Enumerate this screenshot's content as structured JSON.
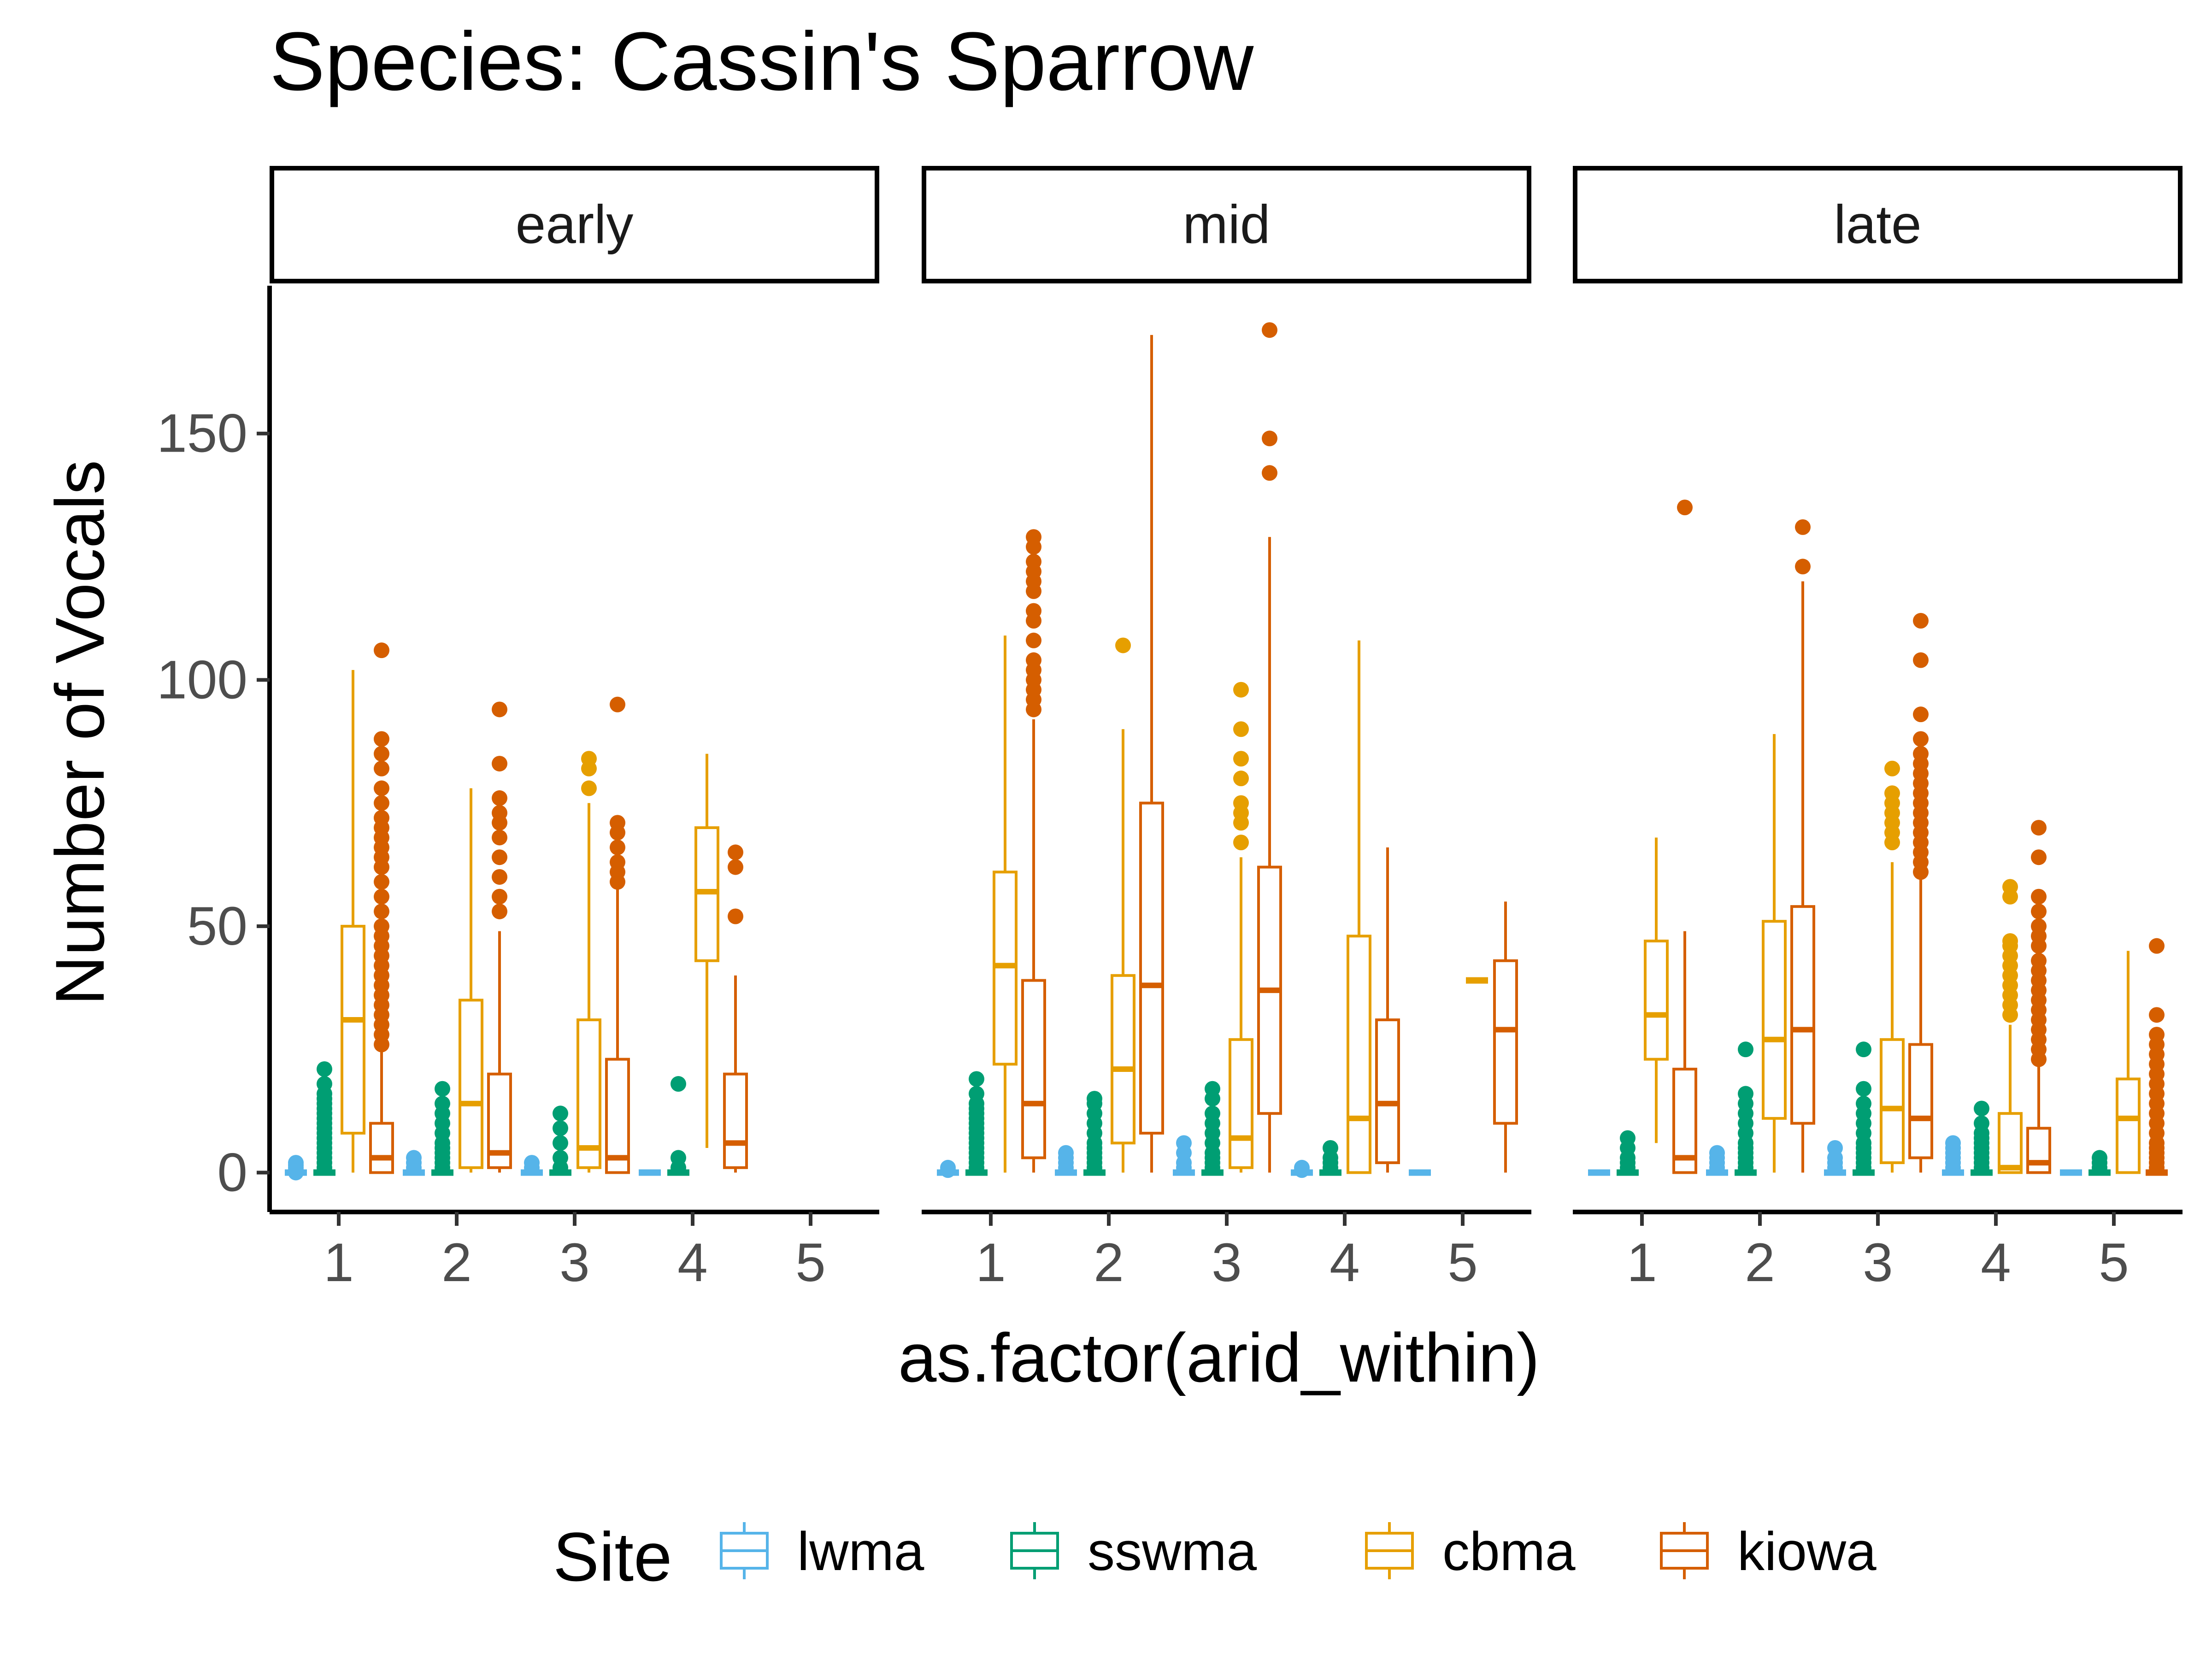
{
  "chart_data": {
    "type": "box",
    "title": "Species: Cassin's Sparrow",
    "xlabel": "as.factor(arid_within)",
    "ylabel": "Number of Vocals",
    "ylim": [
      -8,
      180
    ],
    "y_ticks": [
      0,
      50,
      100,
      150
    ],
    "categories": [
      "1",
      "2",
      "3",
      "4",
      "5"
    ],
    "facets": [
      "early",
      "mid",
      "late"
    ],
    "legend": {
      "title": "Site",
      "position": "bottom",
      "items": [
        {
          "name": "lwma",
          "color": "#56B4E9"
        },
        {
          "name": "sswma",
          "color": "#009E73"
        },
        {
          "name": "cbma",
          "color": "#E69F00"
        },
        {
          "name": "kiowa",
          "color": "#D55E00"
        }
      ]
    },
    "series_order": [
      "lwma",
      "sswma",
      "cbma",
      "kiowa"
    ],
    "panels": [
      {
        "facet": "early",
        "boxes": [
          {
            "category": "1",
            "series": "lwma",
            "min": 0,
            "q1": 0,
            "median": 0,
            "q3": 0,
            "max": 0,
            "outliers": [
              0,
              0.5,
              1,
              1.5,
              2
            ]
          },
          {
            "category": "1",
            "series": "sswma",
            "min": 0,
            "q1": 0,
            "median": 0,
            "q3": 0,
            "max": 0,
            "outliers": [
              1,
              2,
              3,
              4,
              5,
              6,
              7,
              8,
              9,
              10,
              11,
              12,
              13,
              14,
              15,
              16,
              18,
              21
            ]
          },
          {
            "category": "1",
            "series": "cbma",
            "min": 0,
            "q1": 8,
            "median": 31,
            "q3": 50,
            "max": 102,
            "outliers": []
          },
          {
            "category": "1",
            "series": "kiowa",
            "min": 0,
            "q1": 0,
            "median": 3,
            "q3": 10,
            "max": 25,
            "outliers": [
              26,
              28,
              30,
              32,
              34,
              36,
              38,
              40,
              42,
              44,
              46,
              48,
              50,
              53,
              56,
              59,
              62,
              64,
              66,
              68,
              70,
              72,
              75,
              78,
              82,
              85,
              88,
              106
            ]
          },
          {
            "category": "2",
            "series": "lwma",
            "min": 0,
            "q1": 0,
            "median": 0,
            "q3": 0,
            "max": 0,
            "outliers": [
              1,
              2,
              3
            ]
          },
          {
            "category": "2",
            "series": "sswma",
            "min": 0,
            "q1": 0,
            "median": 0,
            "q3": 0,
            "max": 0,
            "outliers": [
              1,
              2,
              3,
              4,
              5,
              6,
              8,
              10,
              12,
              14,
              17
            ]
          },
          {
            "category": "2",
            "series": "cbma",
            "min": 0,
            "q1": 1,
            "median": 14,
            "q3": 35,
            "max": 78,
            "outliers": []
          },
          {
            "category": "2",
            "series": "kiowa",
            "min": 0,
            "q1": 1,
            "median": 4,
            "q3": 20,
            "max": 49,
            "outliers": [
              53,
              56,
              60,
              64,
              68,
              71,
              73,
              76,
              83,
              94
            ]
          },
          {
            "category": "3",
            "series": "lwma",
            "min": 0,
            "q1": 0,
            "median": 0,
            "q3": 0,
            "max": 0,
            "outliers": [
              1,
              2
            ]
          },
          {
            "category": "3",
            "series": "sswma",
            "min": 0,
            "q1": 0,
            "median": 0,
            "q3": 0,
            "max": 0,
            "outliers": [
              1,
              3,
              6,
              9,
              12
            ]
          },
          {
            "category": "3",
            "series": "cbma",
            "min": 0,
            "q1": 1,
            "median": 5,
            "q3": 31,
            "max": 75,
            "outliers": [
              78,
              82,
              84
            ]
          },
          {
            "category": "3",
            "series": "kiowa",
            "min": 0,
            "q1": 0,
            "median": 3,
            "q3": 23,
            "max": 58,
            "outliers": [
              59,
              61,
              63,
              66,
              69,
              71,
              95
            ]
          },
          {
            "category": "4",
            "series": "lwma",
            "min": 0,
            "q1": 0,
            "median": 0,
            "q3": 0,
            "max": 0,
            "outliers": []
          },
          {
            "category": "4",
            "series": "sswma",
            "min": 0,
            "q1": 0,
            "median": 0,
            "q3": 0,
            "max": 0,
            "outliers": [
              1,
              3,
              18
            ]
          },
          {
            "category": "4",
            "series": "cbma",
            "min": 5,
            "q1": 43,
            "median": 57,
            "q3": 70,
            "max": 85,
            "outliers": []
          },
          {
            "category": "4",
            "series": "kiowa",
            "min": 0,
            "q1": 1,
            "median": 6,
            "q3": 20,
            "max": 40,
            "outliers": [
              52,
              62,
              65
            ]
          }
        ]
      },
      {
        "facet": "mid",
        "boxes": [
          {
            "category": "1",
            "series": "lwma",
            "min": 0,
            "q1": 0,
            "median": 0,
            "q3": 0,
            "max": 0,
            "outliers": [
              0.5,
              1
            ]
          },
          {
            "category": "1",
            "series": "sswma",
            "min": 0,
            "q1": 0,
            "median": 0,
            "q3": 0,
            "max": 0,
            "outliers": [
              1,
              2,
              3,
              4,
              5,
              6,
              7,
              8,
              9,
              10,
              11,
              12,
              13,
              14,
              16,
              19
            ]
          },
          {
            "category": "1",
            "series": "cbma",
            "min": 0,
            "q1": 22,
            "median": 42,
            "q3": 61,
            "max": 109,
            "outliers": []
          },
          {
            "category": "1",
            "series": "kiowa",
            "min": 0,
            "q1": 3,
            "median": 14,
            "q3": 39,
            "max": 92,
            "outliers": [
              94,
              96,
              98,
              100,
              102,
              104,
              108,
              112,
              114,
              118,
              120,
              122,
              124,
              127,
              129
            ]
          },
          {
            "category": "2",
            "series": "lwma",
            "min": 0,
            "q1": 0,
            "median": 0,
            "q3": 0,
            "max": 0,
            "outliers": [
              1,
              2,
              3,
              4
            ]
          },
          {
            "category": "2",
            "series": "sswma",
            "min": 0,
            "q1": 0,
            "median": 0,
            "q3": 0,
            "max": 0,
            "outliers": [
              1,
              2,
              3,
              4,
              5,
              6,
              8,
              10,
              12,
              14,
              15
            ]
          },
          {
            "category": "2",
            "series": "cbma",
            "min": 0,
            "q1": 6,
            "median": 21,
            "q3": 40,
            "max": 90,
            "outliers": [
              107
            ]
          },
          {
            "category": "2",
            "series": "kiowa",
            "min": 0,
            "q1": 8,
            "median": 38,
            "q3": 75,
            "max": 170,
            "outliers": []
          },
          {
            "category": "3",
            "series": "lwma",
            "min": 0,
            "q1": 0,
            "median": 0,
            "q3": 0,
            "max": 0,
            "outliers": [
              1,
              2,
              4,
              6
            ]
          },
          {
            "category": "3",
            "series": "sswma",
            "min": 0,
            "q1": 0,
            "median": 0,
            "q3": 0,
            "max": 0,
            "outliers": [
              1,
              2,
              3,
              4,
              6,
              8,
              10,
              12,
              15,
              17
            ]
          },
          {
            "category": "3",
            "series": "cbma",
            "min": 0,
            "q1": 1,
            "median": 7,
            "q3": 27,
            "max": 64,
            "outliers": [
              67,
              71,
              73,
              75,
              80,
              84,
              90,
              98
            ]
          },
          {
            "category": "3",
            "series": "kiowa",
            "min": 0,
            "q1": 12,
            "median": 37,
            "q3": 62,
            "max": 129,
            "outliers": [
              142,
              149,
              171
            ]
          },
          {
            "category": "4",
            "series": "lwma",
            "min": 0,
            "q1": 0,
            "median": 0,
            "q3": 0,
            "max": 0,
            "outliers": [
              0.5,
              1
            ]
          },
          {
            "category": "4",
            "series": "sswma",
            "min": 0,
            "q1": 0,
            "median": 0,
            "q3": 0,
            "max": 0,
            "outliers": [
              1,
              2,
              3,
              5
            ]
          },
          {
            "category": "4",
            "series": "cbma",
            "min": 0,
            "q1": 0,
            "median": 11,
            "q3": 48,
            "max": 108,
            "outliers": []
          },
          {
            "category": "4",
            "series": "kiowa",
            "min": 0,
            "q1": 2,
            "median": 14,
            "q3": 31,
            "max": 66,
            "outliers": []
          },
          {
            "category": "5",
            "series": "lwma",
            "min": 0,
            "q1": 0,
            "median": 0,
            "q3": 0,
            "max": 0,
            "outliers": []
          },
          {
            "category": "5",
            "series": "cbma",
            "min": 39,
            "q1": 39,
            "median": 39,
            "q3": 39,
            "max": 39,
            "outliers": []
          },
          {
            "category": "5",
            "series": "kiowa",
            "min": 0,
            "q1": 10,
            "median": 29,
            "q3": 43,
            "max": 55,
            "outliers": []
          }
        ]
      },
      {
        "facet": "late",
        "boxes": [
          {
            "category": "1",
            "series": "lwma",
            "min": 0,
            "q1": 0,
            "median": 0,
            "q3": 0,
            "max": 0,
            "outliers": []
          },
          {
            "category": "1",
            "series": "sswma",
            "min": 0,
            "q1": 0,
            "median": 0,
            "q3": 0,
            "max": 0,
            "outliers": [
              1,
              2,
              3,
              5,
              7
            ]
          },
          {
            "category": "1",
            "series": "cbma",
            "min": 6,
            "q1": 23,
            "median": 32,
            "q3": 47,
            "max": 68,
            "outliers": []
          },
          {
            "category": "1",
            "series": "kiowa",
            "min": 0,
            "q1": 0,
            "median": 3,
            "q3": 21,
            "max": 49,
            "outliers": [
              135
            ]
          },
          {
            "category": "2",
            "series": "lwma",
            "min": 0,
            "q1": 0,
            "median": 0,
            "q3": 0,
            "max": 0,
            "outliers": [
              1,
              2,
              3,
              4
            ]
          },
          {
            "category": "2",
            "series": "sswma",
            "min": 0,
            "q1": 0,
            "median": 0,
            "q3": 0,
            "max": 0,
            "outliers": [
              1,
              2,
              3,
              4,
              5,
              6,
              8,
              10,
              12,
              14,
              16,
              25
            ]
          },
          {
            "category": "2",
            "series": "cbma",
            "min": 0,
            "q1": 11,
            "median": 27,
            "q3": 51,
            "max": 89,
            "outliers": []
          },
          {
            "category": "2",
            "series": "kiowa",
            "min": 0,
            "q1": 10,
            "median": 29,
            "q3": 54,
            "max": 120,
            "outliers": [
              123,
              131
            ]
          },
          {
            "category": "3",
            "series": "lwma",
            "min": 0,
            "q1": 0,
            "median": 0,
            "q3": 0,
            "max": 0,
            "outliers": [
              1,
              2,
              3,
              5
            ]
          },
          {
            "category": "3",
            "series": "sswma",
            "min": 0,
            "q1": 0,
            "median": 0,
            "q3": 0,
            "max": 0,
            "outliers": [
              1,
              2,
              3,
              4,
              5,
              6,
              8,
              10,
              12,
              14,
              17,
              25
            ]
          },
          {
            "category": "3",
            "series": "cbma",
            "min": 0,
            "q1": 2,
            "median": 13,
            "q3": 27,
            "max": 63,
            "outliers": [
              67,
              69,
              71,
              73,
              75,
              77,
              82
            ]
          },
          {
            "category": "3",
            "series": "kiowa",
            "min": 0,
            "q1": 3,
            "median": 11,
            "q3": 26,
            "max": 60,
            "outliers": [
              61,
              63,
              65,
              67,
              69,
              71,
              73,
              75,
              77,
              79,
              81,
              83,
              85,
              88,
              93,
              104,
              112
            ]
          },
          {
            "category": "4",
            "series": "lwma",
            "min": 0,
            "q1": 0,
            "median": 0,
            "q3": 0,
            "max": 0,
            "outliers": [
              1,
              2,
              3,
              4,
              5,
              6
            ]
          },
          {
            "category": "4",
            "series": "sswma",
            "min": 0,
            "q1": 0,
            "median": 0,
            "q3": 0,
            "max": 0,
            "outliers": [
              1,
              2,
              3,
              4,
              5,
              6,
              7,
              8,
              10,
              13
            ]
          },
          {
            "category": "4",
            "series": "cbma",
            "min": 0,
            "q1": 0,
            "median": 1,
            "q3": 12,
            "max": 30,
            "outliers": [
              32,
              34,
              36,
              38,
              40,
              42,
              44,
              46,
              47,
              56,
              58
            ]
          },
          {
            "category": "4",
            "series": "kiowa",
            "min": 0,
            "q1": 0,
            "median": 2,
            "q3": 9,
            "max": 22,
            "outliers": [
              23,
              25,
              27,
              29,
              31,
              33,
              35,
              37,
              39,
              41,
              43,
              46,
              48,
              50,
              53,
              56,
              64,
              70
            ]
          },
          {
            "category": "5",
            "series": "lwma",
            "min": 0,
            "q1": 0,
            "median": 0,
            "q3": 0,
            "max": 0,
            "outliers": []
          },
          {
            "category": "5",
            "series": "sswma",
            "min": 0,
            "q1": 0,
            "median": 0,
            "q3": 0,
            "max": 0,
            "outliers": [
              1,
              2,
              3
            ]
          },
          {
            "category": "5",
            "series": "cbma",
            "min": 0,
            "q1": 0,
            "median": 11,
            "q3": 19,
            "max": 45,
            "outliers": []
          },
          {
            "category": "5",
            "series": "kiowa",
            "min": 0,
            "q1": 0,
            "median": 0,
            "q3": 0,
            "max": 0,
            "outliers": [
              1,
              2,
              3,
              4,
              5,
              6,
              8,
              10,
              12,
              14,
              16,
              18,
              20,
              22,
              24,
              26,
              28,
              32,
              46
            ]
          }
        ]
      }
    ]
  }
}
